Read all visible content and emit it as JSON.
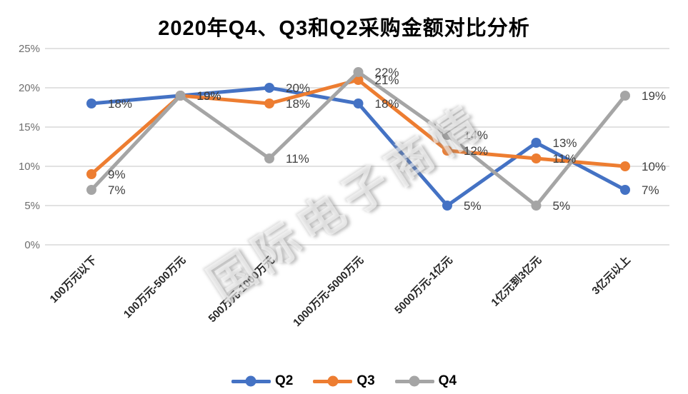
{
  "title": "2020年Q4、Q3和Q2采购金额对比分析",
  "watermark": "国际电子商情",
  "colors": {
    "grid": "#D9D9D9",
    "y_tick_label": "#6E6E6E",
    "x_axis_label": "#262626",
    "data_label": "#404040",
    "title": "#000000"
  },
  "chart_data": {
    "type": "line",
    "title": "2020年Q4、Q3和Q2采购金额对比分析",
    "categories": [
      "100万元以下",
      "100万元-500万元",
      "500万元-1000万元",
      "1000万元-5000万元",
      "5000万元-1亿元",
      "1亿元到3亿元",
      "3亿元以上"
    ],
    "series": [
      {
        "name": "Q2",
        "color": "#4472C4",
        "values": [
          18,
          19,
          20,
          18,
          5,
          13,
          7
        ]
      },
      {
        "name": "Q3",
        "color": "#ED7D31",
        "values": [
          9,
          19,
          18,
          21,
          12,
          11,
          10
        ]
      },
      {
        "name": "Q4",
        "color": "#A5A5A5",
        "values": [
          7,
          19,
          11,
          22,
          14,
          5,
          19
        ]
      }
    ],
    "xlabel": "",
    "ylabel": "",
    "ylim": [
      0,
      25
    ],
    "ytick_step": 5,
    "yticks": [
      "0%",
      "5%",
      "10%",
      "15%",
      "20%",
      "25%"
    ],
    "grid": true,
    "legend_position": "bottom",
    "data_labels": true,
    "label_suffix": "%"
  }
}
